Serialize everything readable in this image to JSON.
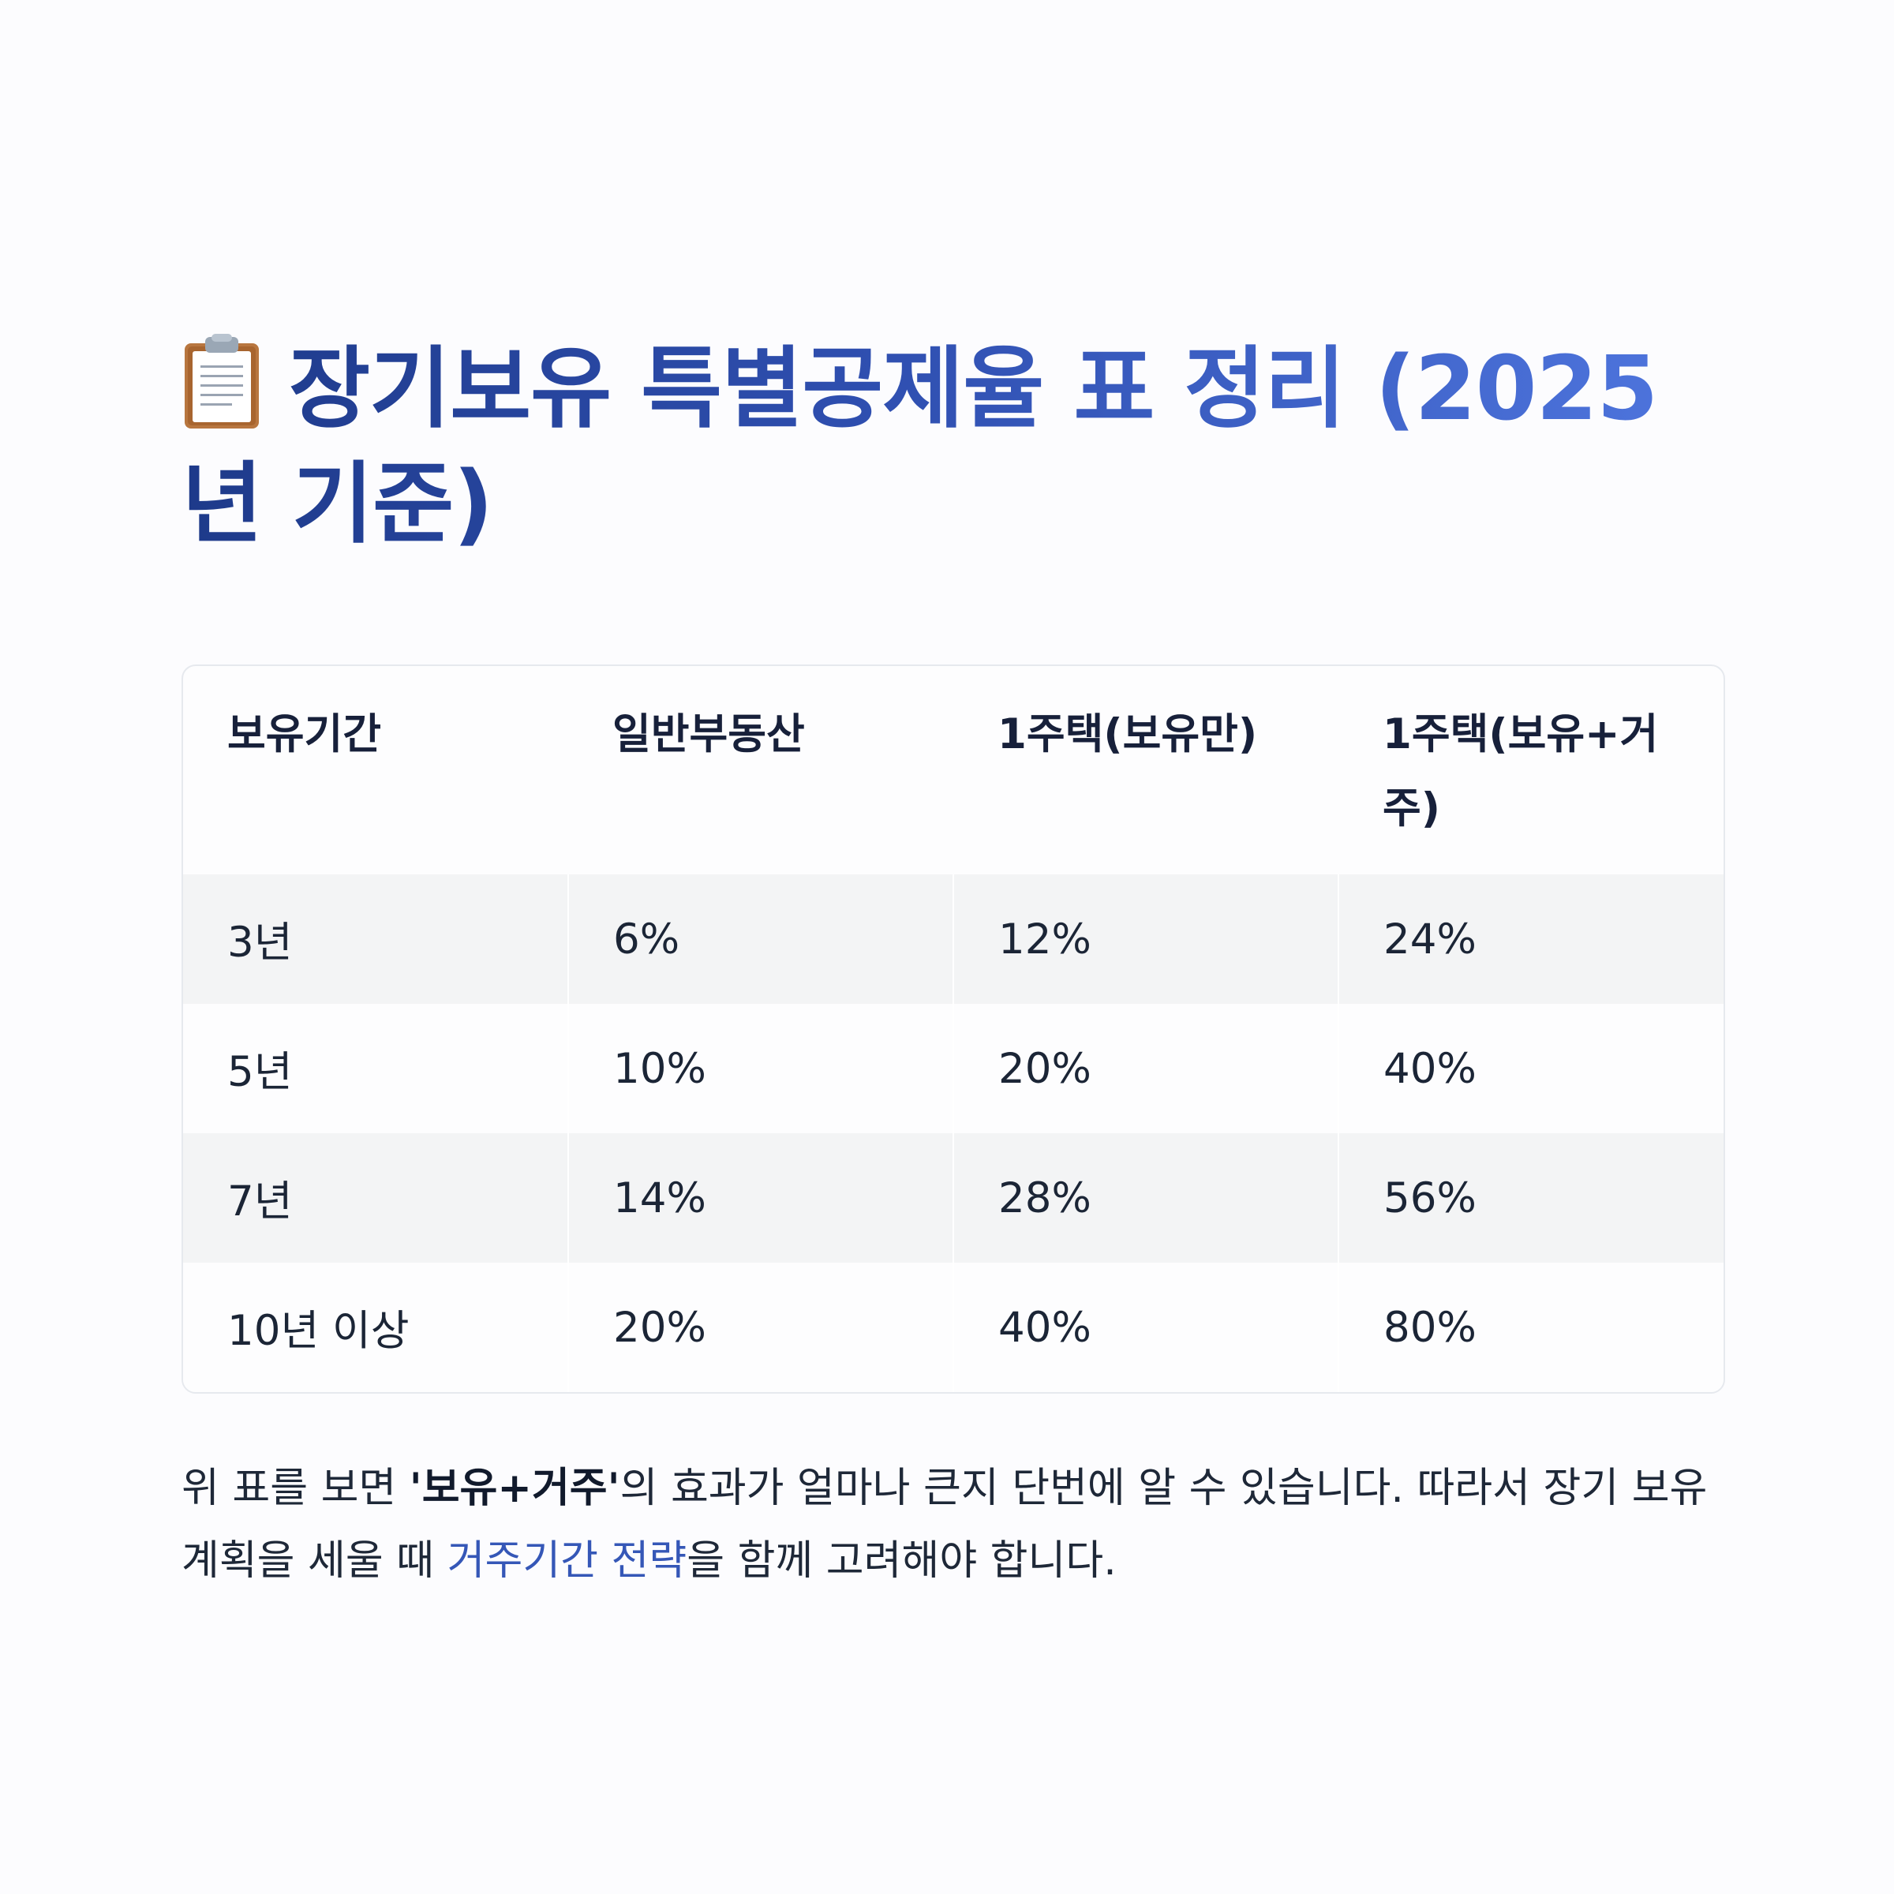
{
  "title": {
    "icon": "clipboard-icon",
    "text": "장기보유 특별공제율 표 정리 (2025년 기준)"
  },
  "table": {
    "headers": [
      "보유기간",
      "일반부동산",
      "1주택(보유만)",
      "1주택(보유+거주)"
    ],
    "rows": [
      [
        "3년",
        "6%",
        "12%",
        "24%"
      ],
      [
        "5년",
        "10%",
        "20%",
        "40%"
      ],
      [
        "7년",
        "14%",
        "28%",
        "56%"
      ],
      [
        "10년 이상",
        "20%",
        "40%",
        "80%"
      ]
    ]
  },
  "note": {
    "part1": "위 표를 보면 ",
    "bold": "'보유+거주'",
    "part2": "의 효과가 얼마나 큰지 단번에 알 수 있습니다. 따라서 장기 보유 계획을 세울 때 ",
    "link": "거주기간 전략",
    "part3": "을 함께 고려해야 합니다."
  },
  "colors": {
    "title_start": "#1e3a8a",
    "title_end": "#4f76df",
    "row_stripe": "#f3f4f5",
    "link": "#3557b7"
  }
}
